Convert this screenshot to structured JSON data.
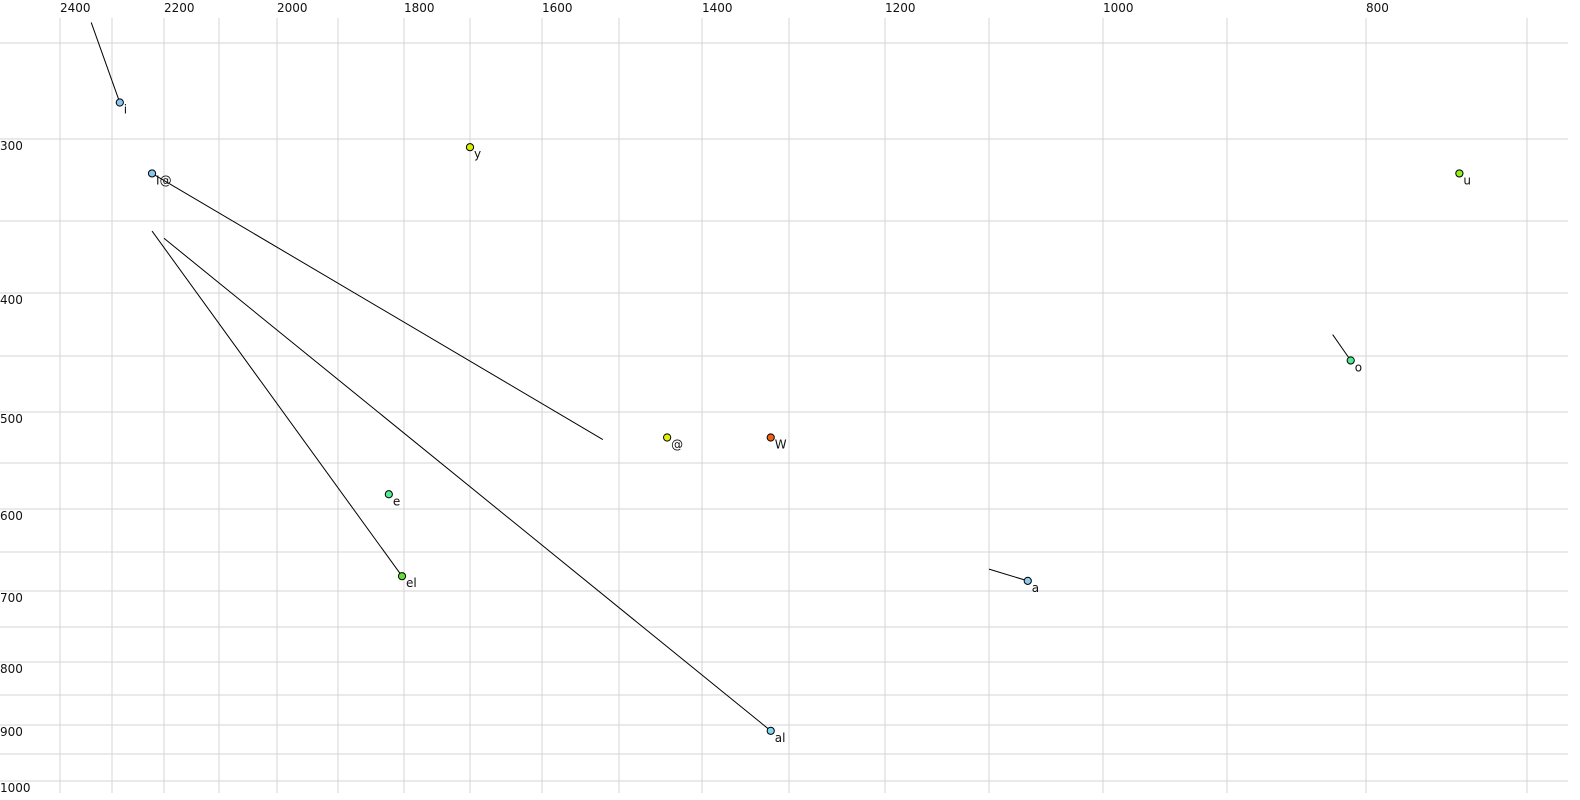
{
  "chart_data": {
    "type": "scatter",
    "title": "",
    "xlabel": "",
    "ylabel": "",
    "x_axis": {
      "reversed": true,
      "position": "top",
      "grid_step": 100,
      "tick_labels": [
        "2400",
        "2200",
        "2000",
        "1800",
        "1600",
        "1400",
        "1200",
        "1000",
        "800"
      ],
      "range": [
        2400,
        700
      ]
    },
    "y_axis": {
      "reversed": true,
      "position": "left",
      "grid_step": 50,
      "tick_labels": [
        "300",
        "400",
        "500",
        "600",
        "700",
        "800",
        "900",
        "1000"
      ],
      "range": [
        250,
        1000
      ]
    },
    "grid": true,
    "points": [
      {
        "label": "i",
        "x": 2285,
        "y": 281,
        "color": "#8cc4f0",
        "trajectory_end": [
          2340,
          240
        ]
      },
      {
        "label": "I@",
        "x": 2223,
        "y": 321,
        "color": "#8cc4f0",
        "trajectory_end": [
          1521,
          527
        ]
      },
      {
        "label": "y",
        "x": 1700,
        "y": 305,
        "color": "#d8f000"
      },
      {
        "label": "u",
        "x": 742,
        "y": 321,
        "color": "#90f020"
      },
      {
        "label": "o",
        "x": 811,
        "y": 454,
        "color": "#50e890",
        "trajectory_end": [
          824,
          433
        ]
      },
      {
        "label": "@",
        "x": 1442,
        "y": 525,
        "color": "#e0f000"
      },
      {
        "label": "W",
        "x": 1321,
        "y": 525,
        "color": "#f06010"
      },
      {
        "label": "e",
        "x": 1823,
        "y": 584,
        "color": "#50f090"
      },
      {
        "label": "el",
        "x": 1803,
        "y": 681,
        "color": "#60e030",
        "trajectory_end": [
          2223,
          357
        ]
      },
      {
        "label": "a",
        "x": 1066,
        "y": 687,
        "color": "#90c8f0",
        "trajectory_end": [
          1100,
          672
        ]
      },
      {
        "label": "al",
        "x": 1321,
        "y": 910,
        "color": "#80d8f0",
        "trajectory_end": [
          2200,
          362
        ]
      }
    ]
  }
}
